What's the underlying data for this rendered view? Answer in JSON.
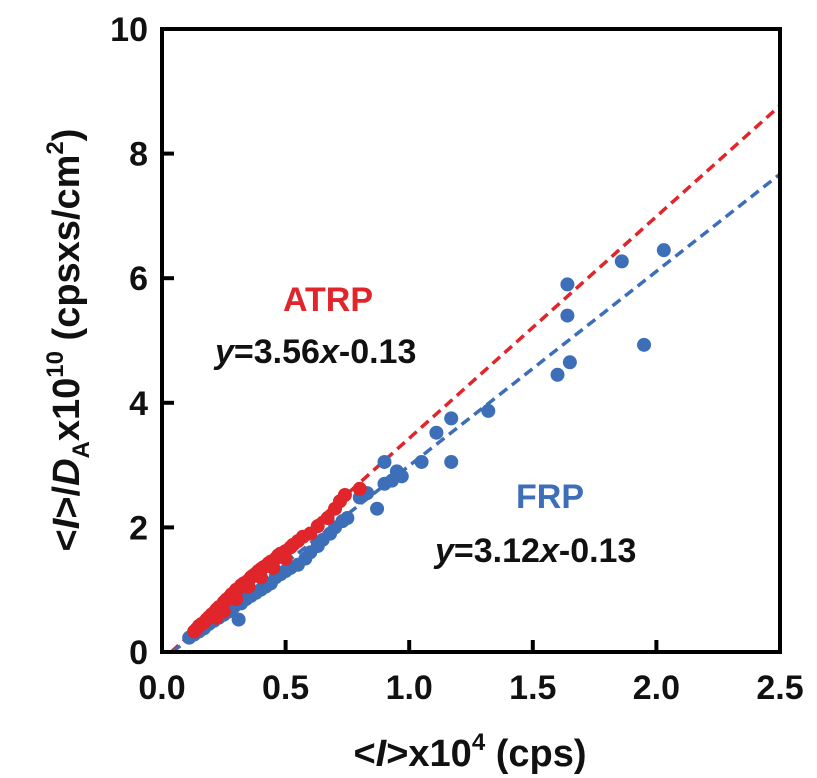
{
  "chart_data": {
    "type": "scatter",
    "xlim": [
      0,
      2.5
    ],
    "ylim": [
      0,
      10
    ],
    "x_ticks": [
      0.0,
      0.5,
      1.0,
      1.5,
      2.0,
      2.5
    ],
    "x_tick_labels": [
      "0.0",
      "0.5",
      "1.0",
      "1.5",
      "2.0",
      "2.5"
    ],
    "y_ticks": [
      0,
      2,
      4,
      6,
      8,
      10
    ],
    "y_tick_labels": [
      "0",
      "2",
      "4",
      "6",
      "8",
      "10"
    ],
    "xlabel": {
      "pre": "<",
      "italic": "I",
      "post": ">x10",
      "sup": "4",
      "tail": " (cps)"
    },
    "ylabel": {
      "pre": "<",
      "italic1": "I",
      "mid": ">/",
      "italic2": "D",
      "sub": "A",
      "post": "x10",
      "sup": "10",
      "tail": " (cpsxs/cm",
      "sup2": "2",
      "end": ")"
    },
    "grid": false,
    "series": [
      {
        "name": "ATRP",
        "color": "#e0252b",
        "equation": {
          "y": "y",
          "mid": "=3.56",
          "x": "x",
          "tail": "-0.13"
        },
        "fit": {
          "slope": 3.56,
          "intercept": -0.13
        },
        "points": [
          [
            0.13,
            0.33
          ],
          [
            0.14,
            0.37
          ],
          [
            0.15,
            0.42
          ],
          [
            0.16,
            0.45
          ],
          [
            0.17,
            0.47
          ],
          [
            0.18,
            0.52
          ],
          [
            0.19,
            0.56
          ],
          [
            0.2,
            0.6
          ],
          [
            0.21,
            0.63
          ],
          [
            0.22,
            0.68
          ],
          [
            0.23,
            0.72
          ],
          [
            0.24,
            0.74
          ],
          [
            0.25,
            0.8
          ],
          [
            0.26,
            0.84
          ],
          [
            0.27,
            0.87
          ],
          [
            0.28,
            0.92
          ],
          [
            0.29,
            0.95
          ],
          [
            0.3,
            1.0
          ],
          [
            0.31,
            1.02
          ],
          [
            0.32,
            1.07
          ],
          [
            0.33,
            1.1
          ],
          [
            0.34,
            1.12
          ],
          [
            0.35,
            1.15
          ],
          [
            0.36,
            1.2
          ],
          [
            0.37,
            1.23
          ],
          [
            0.38,
            1.26
          ],
          [
            0.39,
            1.3
          ],
          [
            0.4,
            1.33
          ],
          [
            0.41,
            1.36
          ],
          [
            0.42,
            1.38
          ],
          [
            0.43,
            1.42
          ],
          [
            0.44,
            1.45
          ],
          [
            0.46,
            1.5
          ],
          [
            0.47,
            1.55
          ],
          [
            0.48,
            1.58
          ],
          [
            0.5,
            1.62
          ],
          [
            0.52,
            1.68
          ],
          [
            0.53,
            1.72
          ],
          [
            0.55,
            1.78
          ],
          [
            0.57,
            1.85
          ],
          [
            0.6,
            1.9
          ],
          [
            0.63,
            2.02
          ],
          [
            0.67,
            2.15
          ],
          [
            0.7,
            2.3
          ],
          [
            0.72,
            2.42
          ],
          [
            0.74,
            2.52
          ],
          [
            0.8,
            2.62
          ],
          [
            0.22,
            0.55
          ],
          [
            0.25,
            0.65
          ],
          [
            0.3,
            0.85
          ],
          [
            0.35,
            1.05
          ],
          [
            0.4,
            1.2
          ],
          [
            0.45,
            1.35
          ],
          [
            0.5,
            1.5
          ]
        ]
      },
      {
        "name": "FRP",
        "color": "#3d6fb8",
        "equation": {
          "y": "y",
          "mid": "=3.12",
          "x": "x",
          "tail": "-0.13"
        },
        "fit": {
          "slope": 3.12,
          "intercept": -0.13
        },
        "points": [
          [
            0.11,
            0.23
          ],
          [
            0.13,
            0.28
          ],
          [
            0.15,
            0.33
          ],
          [
            0.17,
            0.38
          ],
          [
            0.19,
            0.45
          ],
          [
            0.21,
            0.5
          ],
          [
            0.23,
            0.55
          ],
          [
            0.25,
            0.6
          ],
          [
            0.27,
            0.65
          ],
          [
            0.29,
            0.72
          ],
          [
            0.31,
            0.52
          ],
          [
            0.32,
            0.78
          ],
          [
            0.34,
            0.85
          ],
          [
            0.36,
            0.9
          ],
          [
            0.38,
            0.95
          ],
          [
            0.4,
            1.0
          ],
          [
            0.42,
            1.05
          ],
          [
            0.44,
            1.1
          ],
          [
            0.46,
            1.2
          ],
          [
            0.48,
            1.25
          ],
          [
            0.5,
            1.3
          ],
          [
            0.52,
            1.35
          ],
          [
            0.55,
            1.4
          ],
          [
            0.58,
            1.5
          ],
          [
            0.6,
            1.6
          ],
          [
            0.63,
            1.7
          ],
          [
            0.65,
            1.8
          ],
          [
            0.68,
            1.9
          ],
          [
            0.7,
            2.0
          ],
          [
            0.73,
            2.1
          ],
          [
            0.75,
            2.15
          ],
          [
            0.8,
            2.48
          ],
          [
            0.83,
            2.55
          ],
          [
            0.87,
            2.3
          ],
          [
            0.9,
            3.05
          ],
          [
            0.9,
            2.7
          ],
          [
            0.93,
            2.75
          ],
          [
            0.95,
            2.9
          ],
          [
            0.97,
            2.82
          ],
          [
            1.05,
            3.05
          ],
          [
            1.11,
            3.52
          ],
          [
            1.17,
            3.75
          ],
          [
            1.17,
            3.05
          ],
          [
            1.32,
            3.87
          ],
          [
            1.6,
            4.45
          ],
          [
            1.64,
            5.9
          ],
          [
            1.64,
            5.4
          ],
          [
            1.65,
            4.65
          ],
          [
            1.86,
            6.27
          ],
          [
            1.95,
            4.93
          ],
          [
            2.03,
            6.45
          ]
        ]
      }
    ]
  }
}
